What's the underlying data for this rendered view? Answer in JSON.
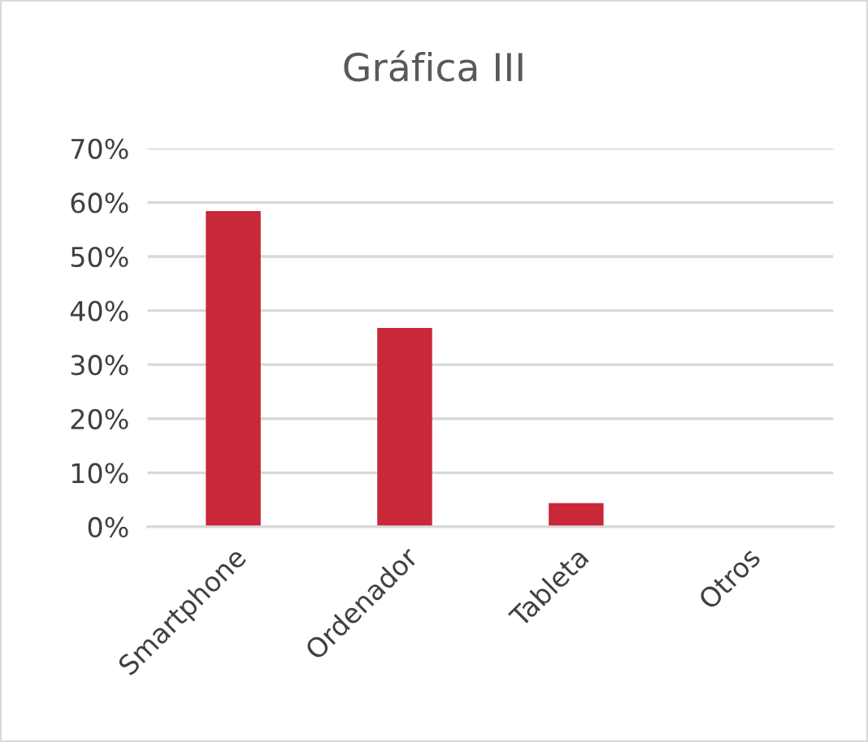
{
  "chart_data": {
    "type": "bar",
    "title": "Gráfica III",
    "categories": [
      "Smartphone",
      "Ordenador",
      "Tableta",
      "Otros"
    ],
    "values": [
      58.4,
      36.8,
      4.4,
      0
    ],
    "color": "#c82837",
    "ylim": [
      0,
      70
    ],
    "yticks": [
      {
        "value": 0,
        "label": "0%"
      },
      {
        "value": 10,
        "label": "10%"
      },
      {
        "value": 20,
        "label": "20%"
      },
      {
        "value": 30,
        "label": "30%"
      },
      {
        "value": 40,
        "label": "40%"
      },
      {
        "value": 50,
        "label": "50%"
      },
      {
        "value": 60,
        "label": "60%"
      },
      {
        "value": 70,
        "label": "70%"
      }
    ],
    "grid": "y",
    "legend": false
  }
}
